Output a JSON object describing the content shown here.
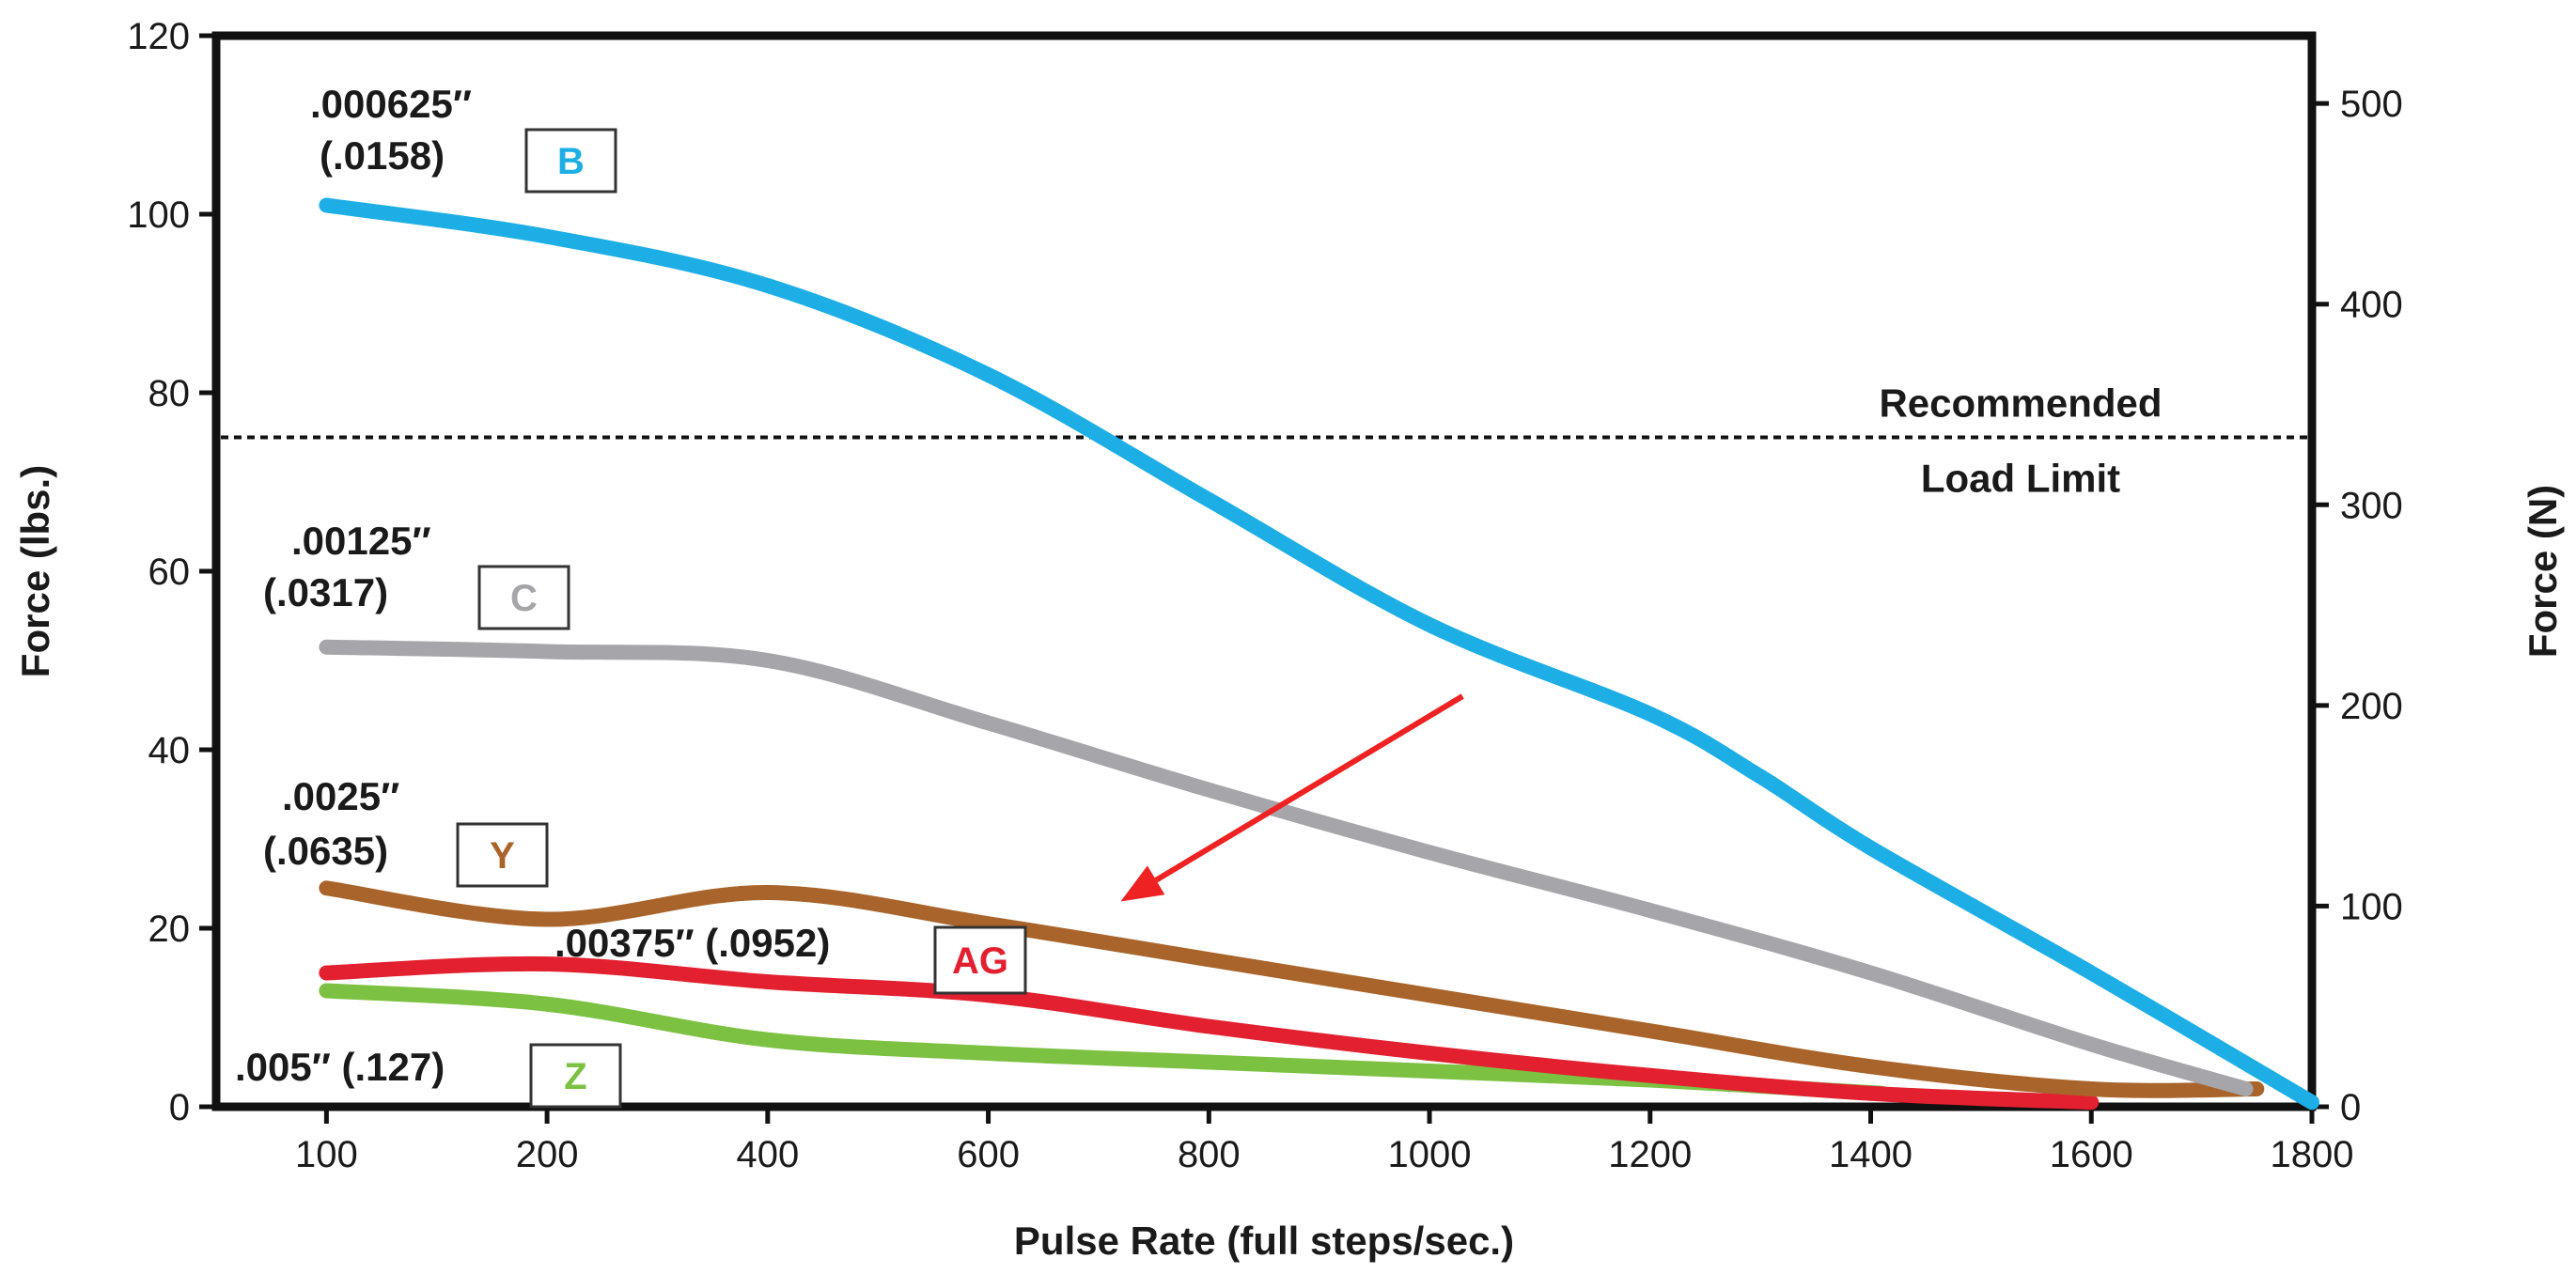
{
  "chart_data": {
    "type": "line",
    "xlabel": "Pulse Rate (full steps/sec.)",
    "ylabel": "Force (lbs.)",
    "ylabel_right": "Force (N)",
    "xlim": [
      0,
      1900
    ],
    "ylim": [
      0,
      120
    ],
    "ylim_right": [
      0,
      533.8
    ],
    "x_ticks": [
      "100",
      "200",
      "400",
      "600",
      "800",
      "1000",
      "1200",
      "1400",
      "1600",
      "1800"
    ],
    "x_tick_values": [
      100,
      300,
      500,
      700,
      900,
      1100,
      1300,
      1500,
      1700,
      1900
    ],
    "y_ticks": [
      0,
      20,
      40,
      60,
      80,
      100,
      120
    ],
    "y_ticks_right": [
      0,
      100,
      200,
      300,
      400,
      500
    ],
    "grid": false,
    "reference_line": {
      "value": 75,
      "style": "dotted",
      "label_line1": "Recommended",
      "label_line2": "Load Limit"
    },
    "arrow": {
      "color": "#ee2222",
      "from": [
        1130,
        46
      ],
      "to": [
        820,
        23
      ]
    },
    "series": [
      {
        "name": "B",
        "step_label": ".000625″",
        "step_label_mm": "(.0158)",
        "color": "#1eaee6",
        "x": [
          100,
          300,
          500,
          700,
          900,
          1100,
          1300,
          1400,
          1500,
          1700,
          1900
        ],
        "y": [
          101,
          97.5,
          92,
          82,
          68,
          54,
          44,
          37,
          29,
          15,
          0.5
        ]
      },
      {
        "name": "C",
        "step_label": ".00125″",
        "step_label_mm": "(.0317)",
        "color": "#a6a6aa",
        "x": [
          100,
          300,
          500,
          700,
          900,
          1100,
          1300,
          1500,
          1700,
          1840
        ],
        "y": [
          51.5,
          51,
          50,
          43,
          35.5,
          28.5,
          22,
          15,
          7,
          2
        ]
      },
      {
        "name": "Y",
        "step_label": ".0025″",
        "step_label_mm": "(.0635)",
        "color": "#a8642a",
        "x": [
          100,
          300,
          500,
          700,
          900,
          1100,
          1300,
          1500,
          1700,
          1850
        ],
        "y": [
          24.5,
          21,
          24,
          20.5,
          16.5,
          12.5,
          8.5,
          4.5,
          2,
          2
        ]
      },
      {
        "name": "AG",
        "step_label": ".00375″ (.0952)",
        "color": "#e22030",
        "x": [
          100,
          300,
          500,
          700,
          900,
          1100,
          1300,
          1500,
          1700
        ],
        "y": [
          15,
          16,
          14,
          12.5,
          9,
          6,
          3.5,
          1.5,
          0.5
        ]
      },
      {
        "name": "Z",
        "step_label": ".005″ (.127)",
        "color": "#7cc142",
        "x": [
          100,
          300,
          500,
          700,
          900,
          1100,
          1300,
          1510
        ],
        "y": [
          13,
          11.5,
          7.5,
          6,
          5,
          4,
          3,
          1.5
        ]
      }
    ]
  }
}
